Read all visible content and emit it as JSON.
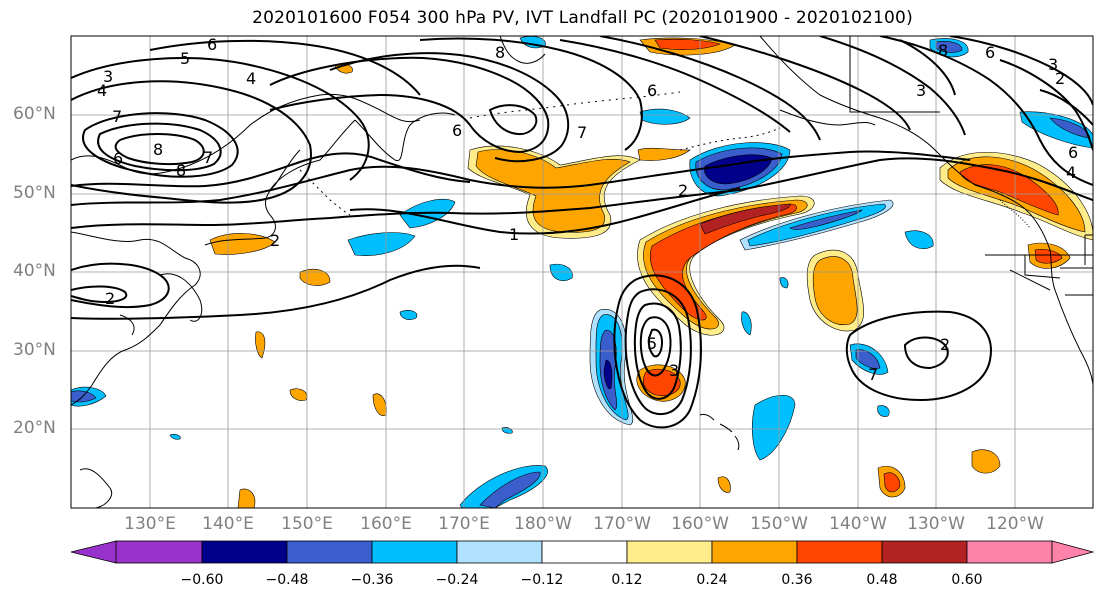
{
  "title": "2020101600 F054 300 hPa PV, IVT Landfall PC (2020101900 - 2020102100)",
  "lat_labels": [
    "60°N",
    "50°N",
    "40°N",
    "30°N",
    "20°N"
  ],
  "lon_labels": [
    "130°E",
    "140°E",
    "150°E",
    "160°E",
    "170°E",
    "180°W",
    "170°W",
    "160°W",
    "150°W",
    "140°W",
    "130°W",
    "120°W"
  ],
  "colorbar": {
    "ticks": [
      "−0.60",
      "−0.48",
      "−0.36",
      "−0.24",
      "−0.12",
      "0.12",
      "0.24",
      "0.36",
      "0.48",
      "0.60"
    ],
    "colors": [
      "#9932cc",
      "#00008b",
      "#3a5fcd",
      "#00bfff",
      "#b0e2ff",
      "#ffffff",
      "#ffec8b",
      "#ffa500",
      "#ff4500",
      "#b22222",
      "#ff82ab"
    ]
  },
  "contour_labels": [
    "3",
    "4",
    "5",
    "6",
    "7",
    "8",
    "6",
    "8",
    "7",
    "4",
    "6",
    "8",
    "7",
    "6",
    "2",
    "1",
    "2",
    "5",
    "3",
    "2",
    "7",
    "8",
    "6",
    "3",
    "2",
    "3",
    "4",
    "6",
    "2"
  ]
}
